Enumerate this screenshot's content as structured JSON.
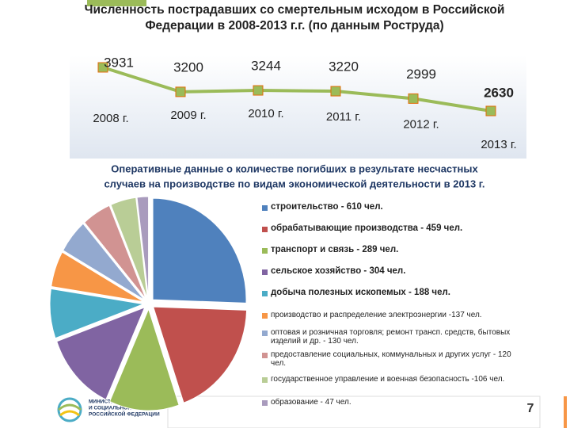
{
  "title": [
    "Численность пострадавших со смертельным исходом в Российской",
    "Федерации в 2008-2013 г.г. (по данным Роструда)"
  ],
  "chart_data": [
    {
      "type": "line",
      "categories": [
        "2008 г.",
        "2009 г.",
        "2010 г.",
        "2011 г.",
        "2012 г.",
        "2013 г."
      ],
      "values": [
        3931,
        3200,
        3244,
        3220,
        2999,
        2630
      ],
      "color": "#9bbb59"
    },
    {
      "type": "pie",
      "title": [
        "Оперативные данные о количестве погибших в результате несчастных",
        "случаев на производстве по видам экономической деятельности в 2013 г."
      ],
      "categories": [
        "строительство - 610 чел.",
        "обрабатывающие производства - 459 чел.",
        "транспорт и связь - 289 чел.",
        "сельское хозяйство - 304 чел.",
        "добыча полезных ископемых - 188 чел.",
        "производство и распределение электроэнергии -137 чел.",
        "оптовая и розничная торговля; ремонт трансп. средств, бытовых изделий и др. - 130 чел.",
        "предоставление социальных, коммунальных и других услуг - 120 чел.",
        "государственное управление и военная безопасность -106 чел.",
        "образование - 47 чел."
      ],
      "values": [
        610,
        459,
        289,
        304,
        188,
        137,
        130,
        120,
        106,
        47
      ],
      "colors": [
        "#4f81bd",
        "#c0504d",
        "#9bbb59",
        "#8064a2",
        "#4bacc6",
        "#f79646",
        "#93a9cf",
        "#d19392",
        "#b9cd96",
        "#a99bbd"
      ]
    }
  ],
  "logo": [
    "МИНИСТЕРСТВО ТРУДА",
    "И СОЦИАЛЬНОЙ ЗАЩИТЫ",
    "РОССИЙСКОЙ ФЕДЕРАЦИИ"
  ],
  "page_number": "7"
}
